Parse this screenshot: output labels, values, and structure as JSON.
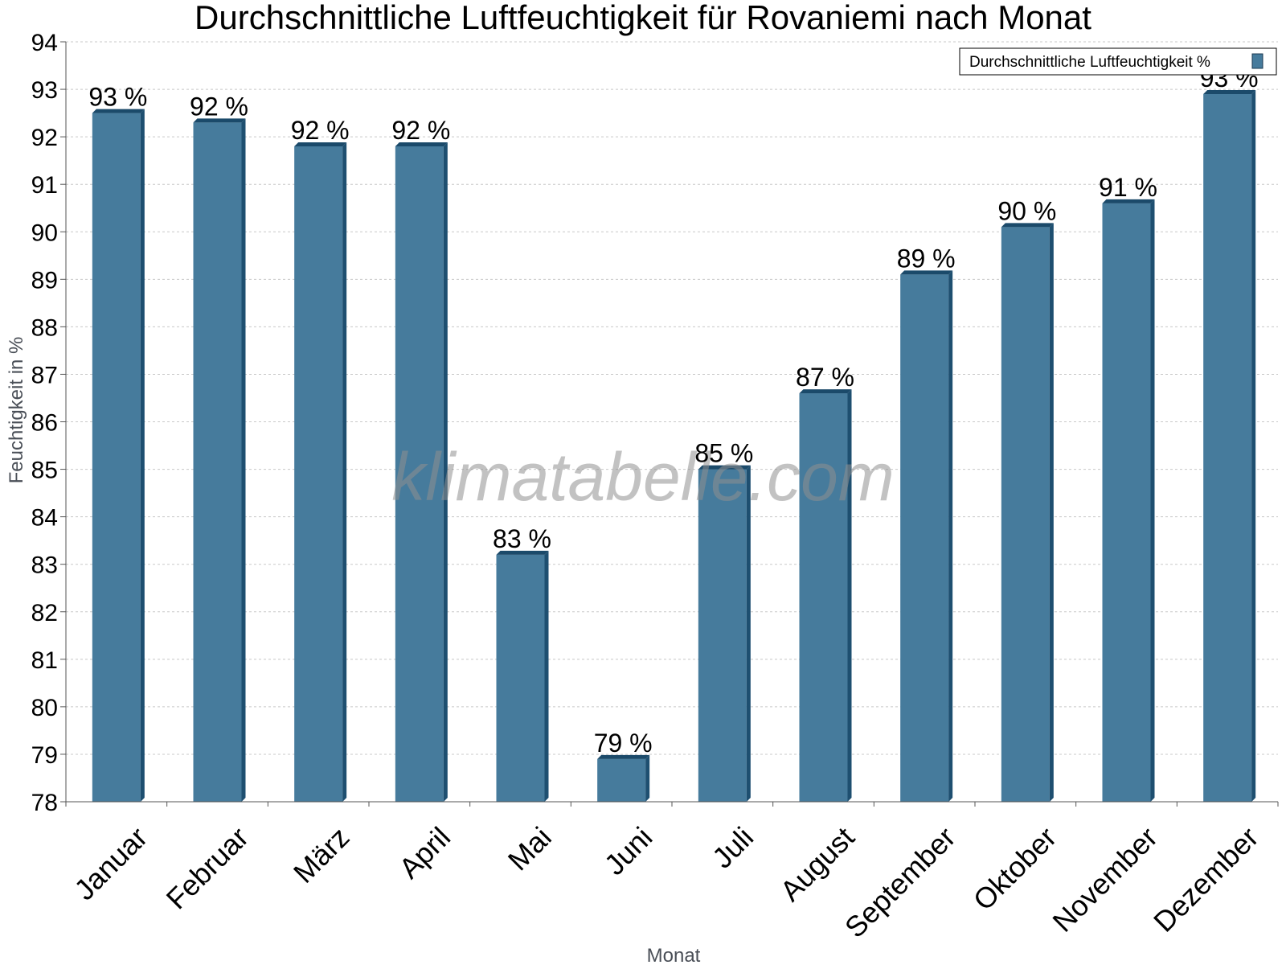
{
  "watermark": "klimatabelle.com",
  "colors": {
    "bar_front": "#467b9c",
    "bar_side": "#1e4f70",
    "bar_top": "#1b4a6a",
    "grid": "#c8c8c8"
  },
  "chart_data": {
    "type": "bar",
    "title": "Durchschnittliche Luftfeuchtigkeit für Rovaniemi nach Monat",
    "xlabel": "Monat",
    "ylabel": "Feuchtigkeit in %",
    "ylim": [
      78,
      94
    ],
    "yticks": [
      78,
      79,
      80,
      81,
      82,
      83,
      84,
      85,
      86,
      87,
      88,
      89,
      90,
      91,
      92,
      93,
      94
    ],
    "grid": true,
    "legend_position": "top-right",
    "categories": [
      "Januar",
      "Februar",
      "März",
      "April",
      "Mai",
      "Juni",
      "Juli",
      "August",
      "September",
      "Oktober",
      "November",
      "Dezember"
    ],
    "series": [
      {
        "name": "Durchschnittliche Luftfeuchtigkeit %",
        "values": [
          92.5,
          92.3,
          91.8,
          91.8,
          83.2,
          78.9,
          85.0,
          86.6,
          89.1,
          90.1,
          90.6,
          92.9
        ],
        "labels": [
          "93 %",
          "92 %",
          "92 %",
          "92 %",
          "83 %",
          "79 %",
          "85 %",
          "87 %",
          "89 %",
          "90 %",
          "91 %",
          "93 %"
        ]
      }
    ]
  }
}
